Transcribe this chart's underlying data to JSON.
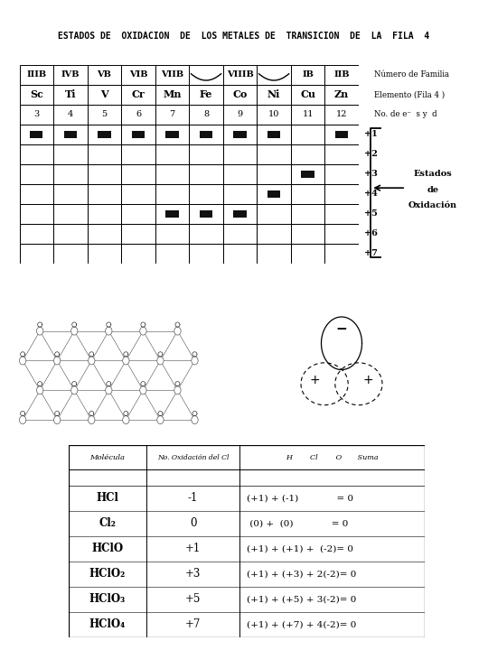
{
  "title": "ESTADOS DE  OXIDACION  DE  LOS METALES DE  TRANSICION  DE  LA  FILA  4",
  "groups": [
    "IIIB",
    "IVB",
    "VB",
    "VIB",
    "VIIB",
    "",
    "VIIIB",
    "",
    "IB",
    "IIB"
  ],
  "elements": [
    "Sc",
    "Ti",
    "V",
    "Cr",
    "Mn",
    "Fe",
    "Co",
    "Ni",
    "Cu",
    "Zn"
  ],
  "numbers": [
    "3",
    "4",
    "5",
    "6",
    "7",
    "8",
    "9",
    "10",
    "11",
    "12"
  ],
  "ox_states": [
    "+1",
    "+2",
    "+3",
    "+4",
    "+5",
    "+6",
    "+7"
  ],
  "right_labels": [
    "Número de Familia",
    "Elemento (Fila 4 )",
    "No. de e⁻  s y  d"
  ],
  "bottom_table_rows": [
    [
      "HCl",
      "-1",
      "(+1) + (-1)             = 0"
    ],
    [
      "Cl₂",
      "0",
      " (0) +  (0)             = 0"
    ],
    [
      "HClO",
      "+1",
      "(+1) + (+1) +  (-2)= 0"
    ],
    [
      "HClO₂",
      "+3",
      "(+1) + (+3) + 2(-2)= 0"
    ],
    [
      "HClO₃",
      "+5",
      "(+1) + (+5) + 3(-2)= 0"
    ],
    [
      "HClO₄",
      "+7",
      "(+1) + (+7) + 4(-2)= 0"
    ]
  ]
}
